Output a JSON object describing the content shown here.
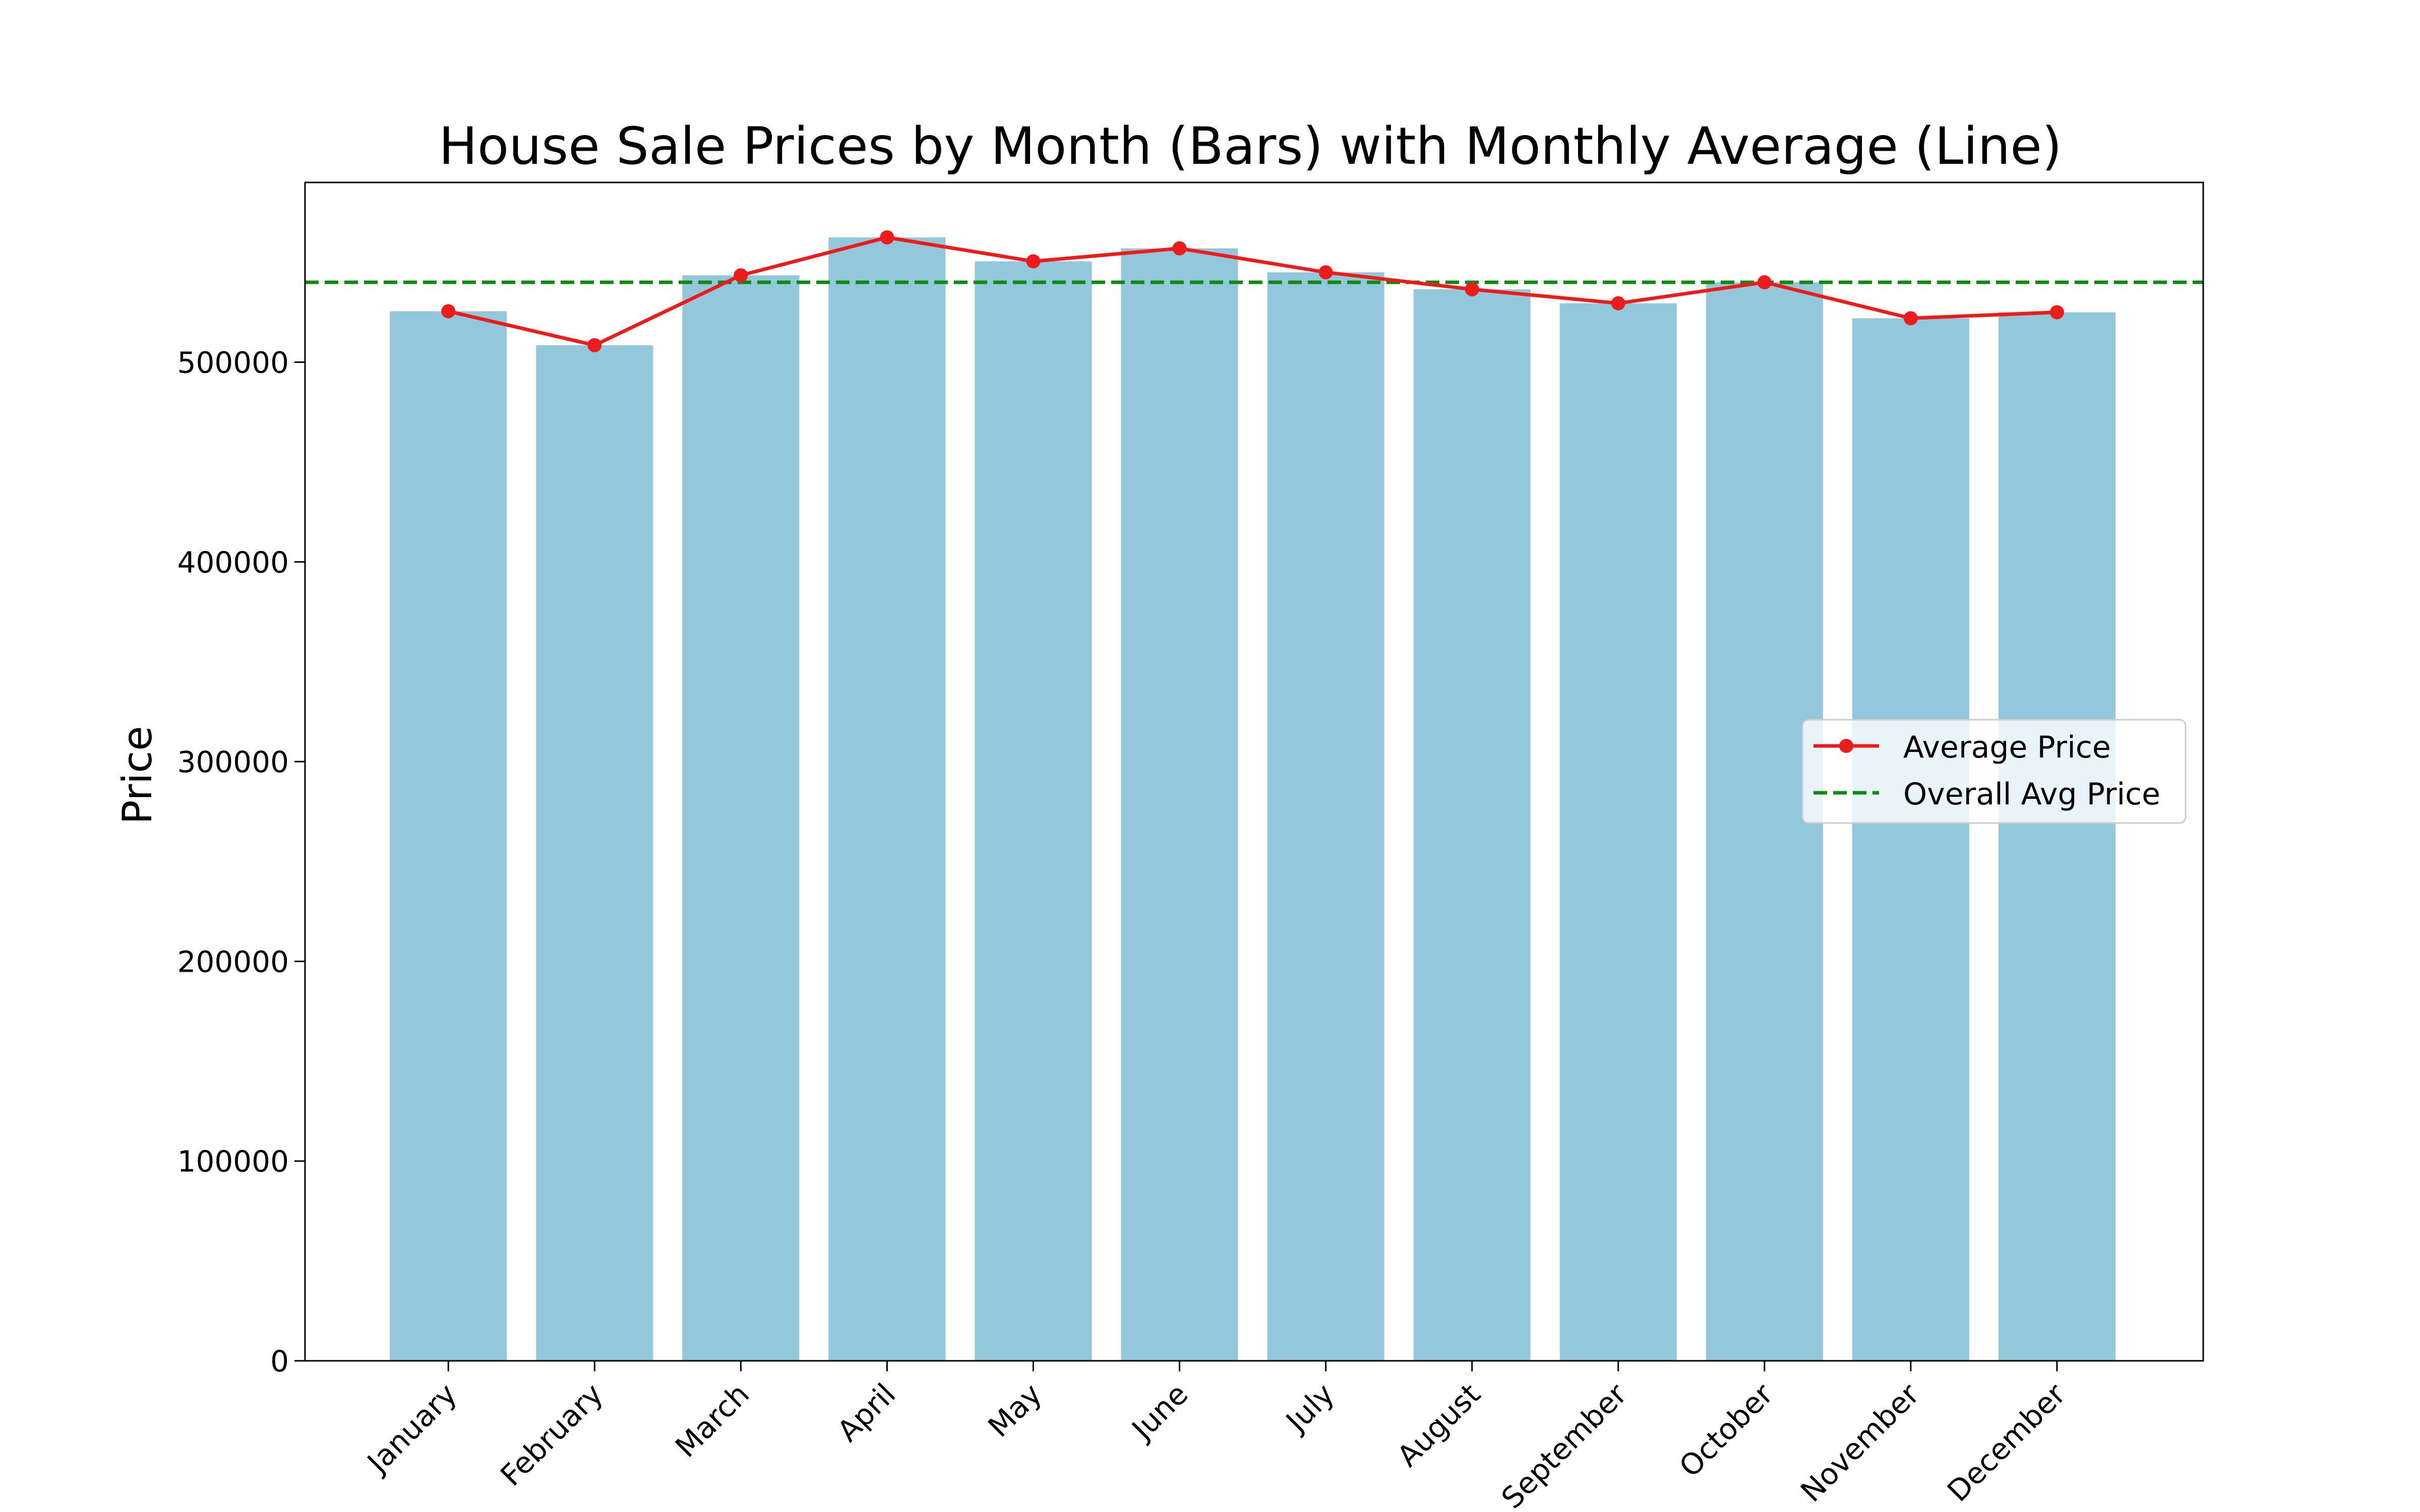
{
  "colors": {
    "bar": "#92c7dc",
    "line": "#ee1b1b",
    "overall": "#0e8a0e",
    "axes": "#000000",
    "background": "#ffffff"
  },
  "chart_data": {
    "type": "bar",
    "title": "House Sale Prices by Month (Bars) with Monthly Average (Line)",
    "xlabel": "",
    "ylabel": "Price",
    "xlim": [
      -0.98,
      12.0
    ],
    "ylim": [
      0,
      590000
    ],
    "yticks": [
      0,
      100000,
      200000,
      300000,
      400000,
      500000
    ],
    "ytick_labels": [
      "0",
      "100000",
      "200000",
      "300000",
      "400000",
      "500000"
    ],
    "categories": [
      "January",
      "February",
      "March",
      "April",
      "May",
      "June",
      "July",
      "August",
      "September",
      "October",
      "November",
      "December"
    ],
    "series": [
      {
        "name": "",
        "type": "bar",
        "values": [
          525500,
          508500,
          543500,
          562500,
          550500,
          557000,
          545000,
          536500,
          529500,
          540000,
          522000,
          525000
        ]
      },
      {
        "name": "Average Price",
        "type": "line",
        "marker": "circle",
        "values": [
          525500,
          508500,
          543500,
          562500,
          550500,
          557000,
          545000,
          536500,
          529500,
          540000,
          522000,
          525000
        ]
      },
      {
        "name": "Overall Avg Price",
        "type": "hline",
        "style": "dashed",
        "value": 540000
      }
    ],
    "legend": {
      "placement": "center-right",
      "entries": [
        "Average Price",
        "Overall Avg Price"
      ]
    },
    "grid": false
  }
}
